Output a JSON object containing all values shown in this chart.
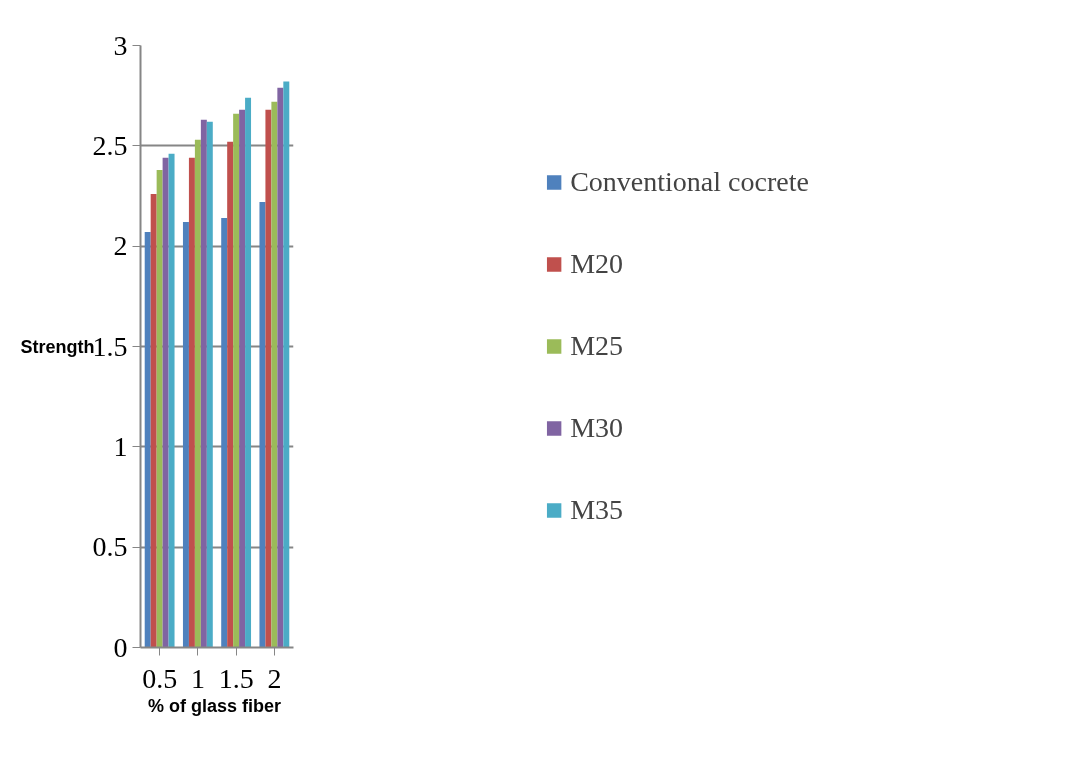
{
  "chart_data": {
    "type": "bar",
    "xlabel": "% of  glass fiber",
    "ylabel": "Strength",
    "categories": [
      "0.5",
      "1",
      "1.5",
      "2"
    ],
    "series": [
      {
        "name": "Conventional cocrete",
        "color": "#4f81bd",
        "values": [
          2.07,
          2.12,
          2.14,
          2.22
        ]
      },
      {
        "name": "M20",
        "color": "#c0504d",
        "values": [
          2.26,
          2.44,
          2.52,
          2.68
        ]
      },
      {
        "name": "M25",
        "color": "#9bbb59",
        "values": [
          2.38,
          2.53,
          2.66,
          2.72
        ]
      },
      {
        "name": "M30",
        "color": "#8064a2",
        "values": [
          2.44,
          2.63,
          2.68,
          2.79
        ]
      },
      {
        "name": "M35",
        "color": "#4bacc6",
        "values": [
          2.46,
          2.62,
          2.74,
          2.82
        ]
      }
    ],
    "ylim": [
      0,
      3
    ],
    "yticks": [
      0,
      0.5,
      1,
      1.5,
      2,
      2.5,
      3
    ],
    "grid": "y",
    "legend": "right"
  }
}
